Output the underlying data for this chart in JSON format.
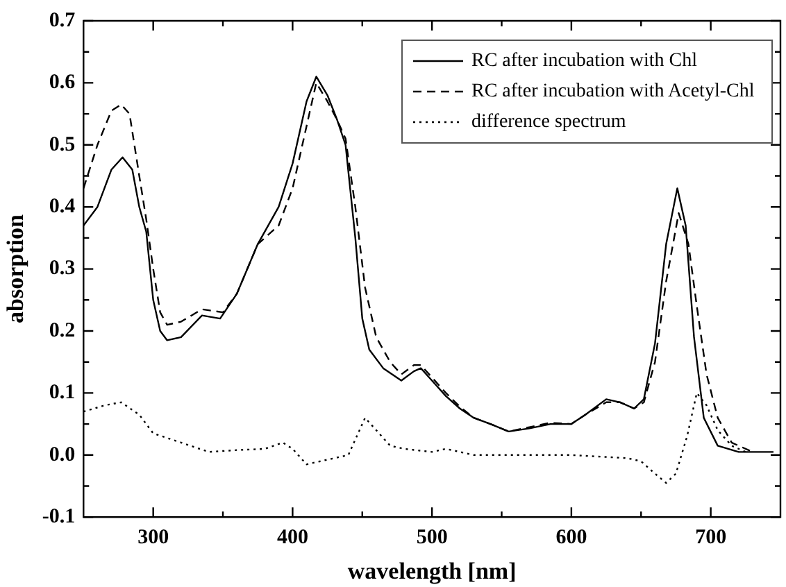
{
  "chart_data": {
    "type": "line",
    "xlabel": "wavelength [nm]",
    "ylabel": "absorption",
    "xlim": [
      250,
      750
    ],
    "ylim": [
      -0.1,
      0.7
    ],
    "xticks": [
      300,
      {
        "value": 350,
        "label": null
      },
      400,
      {
        "value": 450,
        "label": null
      },
      500,
      {
        "value": 550,
        "label": null
      },
      600,
      {
        "value": 650,
        "label": null
      },
      700
    ],
    "yticks": [
      {
        "value": -0.1,
        "label": "-0.1"
      },
      {
        "value": -0.05,
        "label": null
      },
      {
        "value": 0,
        "label": "0.0"
      },
      {
        "value": 0.05,
        "label": null
      },
      {
        "value": 0.1,
        "label": "0.1"
      },
      {
        "value": 0.15,
        "label": null
      },
      {
        "value": 0.2,
        "label": "0.2"
      },
      {
        "value": 0.25,
        "label": null
      },
      {
        "value": 0.3,
        "label": "0.3"
      },
      {
        "value": 0.35,
        "label": null
      },
      {
        "value": 0.4,
        "label": "0.4"
      },
      {
        "value": 0.45,
        "label": null
      },
      {
        "value": 0.5,
        "label": "0.5"
      },
      {
        "value": 0.55,
        "label": null
      },
      {
        "value": 0.6,
        "label": "0.6"
      },
      {
        "value": 0.65,
        "label": null
      },
      {
        "value": 0.7,
        "label": "0.7"
      }
    ],
    "grid": false,
    "legend": "top right",
    "marker": "none",
    "series": [
      {
        "name": "RC after incubation with Chl",
        "color": "#000000",
        "line_style": "solid",
        "x": [
          250,
          260,
          270,
          278,
          285,
          290,
          295,
          300,
          305,
          310,
          320,
          335,
          348,
          360,
          375,
          390,
          400,
          410,
          417,
          425,
          432,
          438,
          445,
          450,
          455,
          465,
          478,
          487,
          492,
          500,
          510,
          520,
          530,
          542,
          555,
          570,
          585,
          600,
          610,
          625,
          635,
          645,
          652,
          660,
          668,
          676,
          682,
          688,
          695,
          705,
          720,
          745
        ],
        "values": [
          0.37,
          0.4,
          0.46,
          0.48,
          0.46,
          0.4,
          0.36,
          0.25,
          0.2,
          0.185,
          0.19,
          0.225,
          0.22,
          0.26,
          0.34,
          0.4,
          0.47,
          0.57,
          0.61,
          0.58,
          0.54,
          0.5,
          0.35,
          0.22,
          0.17,
          0.14,
          0.12,
          0.135,
          0.14,
          0.12,
          0.095,
          0.075,
          0.06,
          0.05,
          0.038,
          0.043,
          0.05,
          0.05,
          0.065,
          0.09,
          0.085,
          0.075,
          0.09,
          0.18,
          0.34,
          0.43,
          0.37,
          0.19,
          0.06,
          0.015,
          0.005,
          0.005
        ]
      },
      {
        "name": "RC after incubation with Acetyl-Chl",
        "color": "#000000",
        "line_style": "dashed",
        "x": [
          250,
          260,
          270,
          277,
          283,
          290,
          295,
          300,
          305,
          310,
          320,
          335,
          350,
          360,
          375,
          390,
          400,
          410,
          417,
          425,
          432,
          438,
          445,
          452,
          460,
          470,
          478,
          487,
          492,
          500,
          510,
          520,
          530,
          542,
          555,
          570,
          585,
          600,
          610,
          625,
          635,
          645,
          652,
          660,
          668,
          677,
          684,
          690,
          697,
          705,
          715,
          730
        ],
        "values": [
          0.43,
          0.5,
          0.555,
          0.565,
          0.55,
          0.45,
          0.38,
          0.3,
          0.23,
          0.21,
          0.215,
          0.235,
          0.23,
          0.26,
          0.34,
          0.37,
          0.43,
          0.53,
          0.6,
          0.57,
          0.54,
          0.51,
          0.4,
          0.27,
          0.19,
          0.15,
          0.13,
          0.145,
          0.145,
          0.125,
          0.1,
          0.078,
          0.06,
          0.05,
          0.038,
          0.045,
          0.052,
          0.05,
          0.065,
          0.085,
          0.085,
          0.075,
          0.085,
          0.15,
          0.28,
          0.39,
          0.34,
          0.24,
          0.13,
          0.06,
          0.02,
          0.005
        ]
      },
      {
        "name": "difference spectrum",
        "color": "#000000",
        "line_style": "dotted",
        "x": [
          250,
          265,
          277,
          290,
          300,
          320,
          340,
          360,
          380,
          393,
          400,
          410,
          430,
          440,
          452,
          460,
          470,
          480,
          500,
          510,
          530,
          560,
          600,
          640,
          650,
          660,
          668,
          675,
          683,
          690,
          697,
          705,
          715,
          725
        ],
        "values": [
          0.07,
          0.08,
          0.085,
          0.065,
          0.035,
          0.02,
          0.005,
          0.008,
          0.01,
          0.02,
          0.01,
          -0.015,
          -0.005,
          0,
          0.06,
          0.04,
          0.015,
          0.01,
          0.005,
          0.01,
          0,
          0,
          0,
          -0.005,
          -0.01,
          -0.03,
          -0.045,
          -0.03,
          0.03,
          0.1,
          0.08,
          0.04,
          0.015,
          0.005
        ]
      }
    ]
  }
}
